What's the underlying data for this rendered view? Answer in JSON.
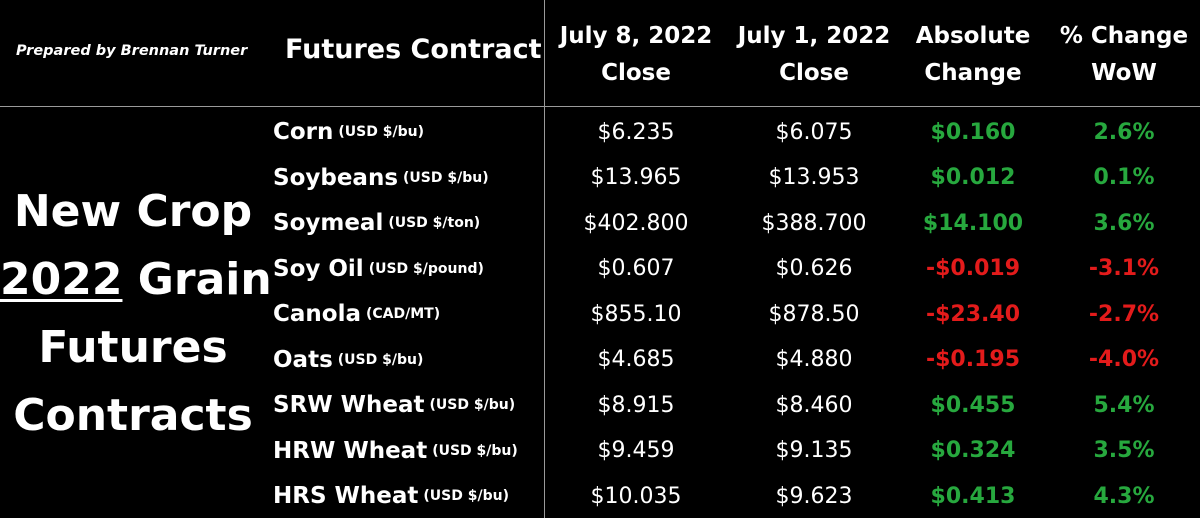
{
  "prepared_by": "Prepared by Brennan Turner",
  "header": {
    "contract": "Futures Contract",
    "col1": [
      "July 8, 2022",
      "Close"
    ],
    "col2": [
      "July 1, 2022",
      "Close"
    ],
    "col3": [
      "Absolute",
      "Change"
    ],
    "col4": [
      "% Change",
      "WoW"
    ]
  },
  "title": {
    "line1": "New Crop",
    "year": "2022",
    "line2_rest": " Grain",
    "line3": "Futures",
    "line4": "Contracts"
  },
  "colors": {
    "positive": "#27a83e",
    "negative": "#e31b1b"
  },
  "rows": [
    {
      "name": "Corn",
      "unit": "(USD $/bu)",
      "jul8": "$6.235",
      "jul1": "$6.075",
      "abs": "$0.160",
      "pct": "2.6%",
      "dir": "pos"
    },
    {
      "name": "Soybeans",
      "unit": "(USD $/bu)",
      "jul8": "$13.965",
      "jul1": "$13.953",
      "abs": "$0.012",
      "pct": "0.1%",
      "dir": "pos"
    },
    {
      "name": "Soymeal",
      "unit": "(USD $/ton)",
      "jul8": "$402.800",
      "jul1": "$388.700",
      "abs": "$14.100",
      "pct": "3.6%",
      "dir": "pos"
    },
    {
      "name": "Soy Oil",
      "unit": "(USD $/pound)",
      "jul8": "$0.607",
      "jul1": "$0.626",
      "abs": "-$0.019",
      "pct": "-3.1%",
      "dir": "neg"
    },
    {
      "name": "Canola",
      "unit": "(CAD/MT)",
      "jul8": "$855.10",
      "jul1": "$878.50",
      "abs": "-$23.40",
      "pct": "-2.7%",
      "dir": "neg"
    },
    {
      "name": "Oats",
      "unit": "(USD $/bu)",
      "jul8": "$4.685",
      "jul1": "$4.880",
      "abs": "-$0.195",
      "pct": "-4.0%",
      "dir": "neg"
    },
    {
      "name": "SRW Wheat",
      "unit": "(USD $/bu)",
      "jul8": "$8.915",
      "jul1": "$8.460",
      "abs": "$0.455",
      "pct": "5.4%",
      "dir": "pos"
    },
    {
      "name": "HRW Wheat",
      "unit": "(USD $/bu)",
      "jul8": "$9.459",
      "jul1": "$9.135",
      "abs": "$0.324",
      "pct": "3.5%",
      "dir": "pos"
    },
    {
      "name": "HRS Wheat",
      "unit": "(USD $/bu)",
      "jul8": "$10.035",
      "jul1": "$9.623",
      "abs": "$0.413",
      "pct": "4.3%",
      "dir": "pos"
    }
  ]
}
